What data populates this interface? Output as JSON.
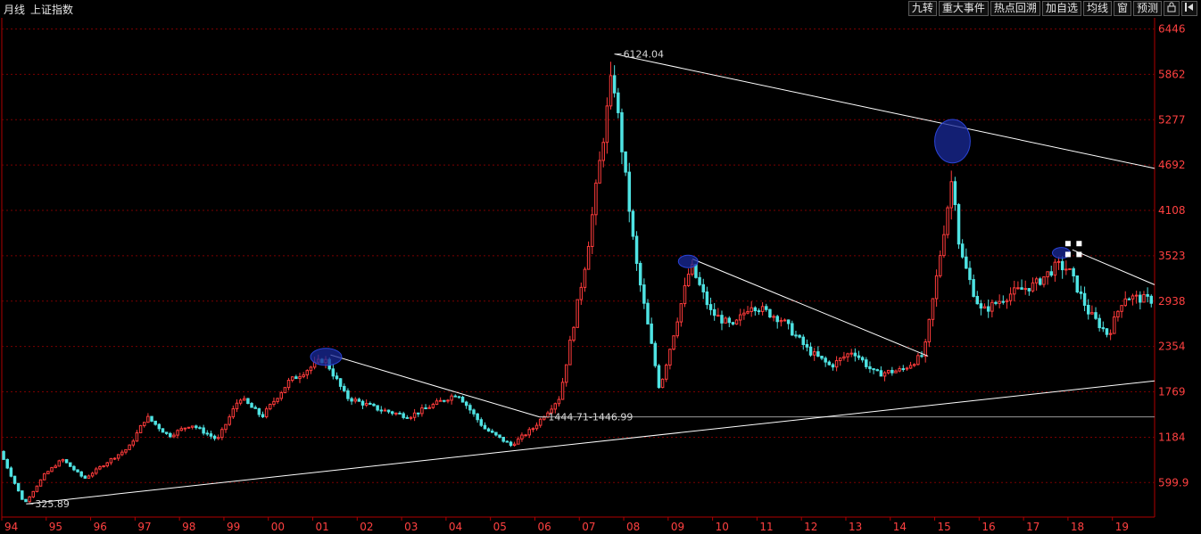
{
  "header": {
    "period": "月线",
    "index_name": "上证指数"
  },
  "toolbar": {
    "buttons": [
      "九转",
      "重大事件",
      "热点回溯",
      "加自选",
      "均线",
      "窗",
      "预测"
    ],
    "lock_icon": "lock-icon",
    "exit_icon": "exit-icon"
  },
  "colors": {
    "up": "#ff3b3b",
    "down": "#4fe3e3",
    "grid": "#7a0000",
    "axis": "#b00000",
    "text": "#ff4040",
    "line": "#ffffff",
    "circle": "#1a2a9a"
  },
  "chart_data": {
    "type": "candlestick",
    "title": "",
    "y_ticks": [
      6446,
      5862,
      5277,
      4692,
      4108,
      3523,
      2938,
      2354,
      1769,
      1184,
      599.9
    ],
    "ylim": [
      155,
      6590
    ],
    "x_ticks": [
      "94",
      "95",
      "96",
      "97",
      "98",
      "99",
      "00",
      "01",
      "02",
      "03",
      "04",
      "05",
      "06",
      "07",
      "08",
      "09",
      "10",
      "11",
      "12",
      "13",
      "14",
      "15",
      "16",
      "17",
      "18",
      "19"
    ],
    "xlim": [
      1994.0,
      2019.95
    ],
    "grid": true,
    "price_labels": [
      {
        "text": "6124.04",
        "x": 2007.79,
        "y": 6124
      },
      {
        "text": "325.89",
        "x": 1994.55,
        "y": 325
      },
      {
        "text": "1444.71-1446.99",
        "x": 2006.1,
        "y": 1446
      }
    ],
    "trendlines": [
      {
        "from": [
          1994.55,
          325
        ],
        "to": [
          2019.95,
          1910
        ]
      },
      {
        "from": [
          2007.79,
          6124
        ],
        "to": [
          2019.95,
          4650
        ]
      },
      {
        "from": [
          2001.4,
          2245
        ],
        "to": [
          2006.1,
          1446
        ]
      },
      {
        "from": [
          2009.55,
          3480
        ],
        "to": [
          2014.85,
          2230
        ]
      },
      {
        "from": [
          2018.1,
          3600
        ],
        "to": [
          2019.95,
          3150
        ]
      }
    ],
    "horizontal_lines": [
      {
        "y": 1446,
        "from": 2006.1,
        "to": 2019.95
      }
    ],
    "highlight_circles": [
      {
        "x": 2001.3,
        "y": 2220,
        "rx": 0.35,
        "ry": 110
      },
      {
        "x": 2009.45,
        "y": 3450,
        "rx": 0.22,
        "ry": 80
      },
      {
        "x": 2015.4,
        "y": 5000,
        "rx": 0.4,
        "ry": 280
      },
      {
        "x": 2017.85,
        "y": 3560,
        "rx": 0.2,
        "ry": 70
      }
    ],
    "anchors": [
      [
        1994.0,
        1000
      ],
      [
        1994.55,
        325
      ],
      [
        1995.0,
        700
      ],
      [
        1995.4,
        900
      ],
      [
        1995.9,
        650
      ],
      [
        1996.5,
        900
      ],
      [
        1996.9,
        1050
      ],
      [
        1997.3,
        1450
      ],
      [
        1997.8,
        1200
      ],
      [
        1998.3,
        1350
      ],
      [
        1998.9,
        1150
      ],
      [
        1999.4,
        1700
      ],
      [
        1999.9,
        1450
      ],
      [
        2000.5,
        1900
      ],
      [
        2001.3,
        2200
      ],
      [
        2001.8,
        1700
      ],
      [
        2002.5,
        1550
      ],
      [
        2003.2,
        1450
      ],
      [
        2004.3,
        1750
      ],
      [
        2004.9,
        1300
      ],
      [
        2005.5,
        1080
      ],
      [
        2006.0,
        1300
      ],
      [
        2006.6,
        1700
      ],
      [
        2007.2,
        3500
      ],
      [
        2007.79,
        5900
      ],
      [
        2008.3,
        3500
      ],
      [
        2008.85,
        1800
      ],
      [
        2009.55,
        3400
      ],
      [
        2010.0,
        2800
      ],
      [
        2010.5,
        2600
      ],
      [
        2010.9,
        2900
      ],
      [
        2011.6,
        2700
      ],
      [
        2012.2,
        2300
      ],
      [
        2012.7,
        2100
      ],
      [
        2013.2,
        2300
      ],
      [
        2013.7,
        2000
      ],
      [
        2014.3,
        2050
      ],
      [
        2014.8,
        2250
      ],
      [
        2015.1,
        3300
      ],
      [
        2015.45,
        4600
      ],
      [
        2015.6,
        3600
      ],
      [
        2015.95,
        3000
      ],
      [
        2016.1,
        2800
      ],
      [
        2016.8,
        3050
      ],
      [
        2017.3,
        3150
      ],
      [
        2017.8,
        3400
      ],
      [
        2018.05,
        3350
      ],
      [
        2018.5,
        2800
      ],
      [
        2018.95,
        2500
      ],
      [
        2019.3,
        3000
      ],
      [
        2019.95,
        2950
      ]
    ]
  }
}
